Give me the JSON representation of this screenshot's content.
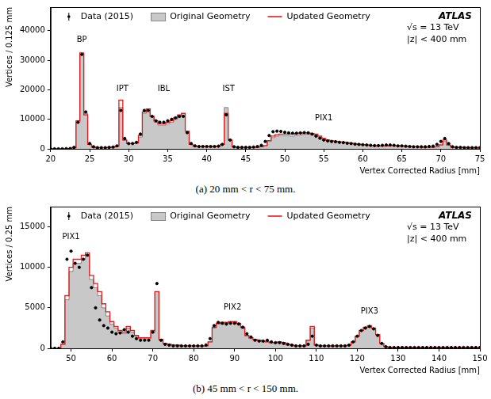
{
  "chart_data": [
    {
      "type": "line",
      "caption": "(a) 20 mm < r < 75 mm.",
      "x_label": "Vertex Corrected Radius [mm]",
      "y_label": "Vertices / 0.125 mm",
      "xlim": [
        20,
        75
      ],
      "xticks": [
        20,
        25,
        30,
        35,
        40,
        45,
        50,
        55,
        60,
        65,
        70,
        75
      ],
      "ylim": [
        0,
        48000
      ],
      "yticks": [
        0,
        10000,
        20000,
        30000,
        40000
      ],
      "grid": false,
      "legend": "upper left",
      "experiment_label": [
        "ATLAS",
        "√s = 13 TeV",
        "|z| < 400 mm"
      ],
      "annotations": [
        {
          "text": "BP",
          "x": 24,
          "y": 35500
        },
        {
          "text": "IPT",
          "x": 29.2,
          "y": 19000
        },
        {
          "text": "IBL",
          "x": 34.5,
          "y": 19000
        },
        {
          "text": "IST",
          "x": 42.8,
          "y": 19000
        },
        {
          "text": "PIX1",
          "x": 55,
          "y": 9000
        }
      ],
      "x": [
        20,
        20.5,
        21,
        21.5,
        22,
        22.5,
        23,
        23.5,
        24,
        24.5,
        25,
        25.5,
        26,
        26.5,
        27,
        27.5,
        28,
        28.5,
        29,
        29.5,
        30,
        30.5,
        31,
        31.5,
        32,
        32.5,
        33,
        33.5,
        34,
        34.5,
        35,
        35.5,
        36,
        36.5,
        37,
        37.5,
        38,
        38.5,
        39,
        39.5,
        40,
        40.5,
        41,
        41.5,
        42,
        42.5,
        43,
        43.5,
        44,
        44.5,
        45,
        45.5,
        46,
        46.5,
        47,
        47.5,
        48,
        48.5,
        49,
        49.5,
        50,
        50.5,
        51,
        51.5,
        52,
        52.5,
        53,
        53.5,
        54,
        54.5,
        55,
        55.5,
        56,
        56.5,
        57,
        57.5,
        58,
        58.5,
        59,
        59.5,
        60,
        60.5,
        61,
        61.5,
        62,
        62.5,
        63,
        63.5,
        64,
        64.5,
        65,
        65.5,
        66,
        66.5,
        67,
        67.5,
        68,
        68.5,
        69,
        69.5,
        70,
        70.5,
        71,
        71.5,
        72,
        72.5,
        73,
        73.5,
        74,
        74.5,
        75
      ],
      "series": [
        {
          "name": "Data (2015)",
          "type": "scatter",
          "marker": "point",
          "color": "#000000",
          "values": [
            0,
            0,
            0,
            0,
            50,
            100,
            500,
            9000,
            32000,
            12500,
            1800,
            700,
            400,
            400,
            400,
            500,
            600,
            1000,
            13000,
            3500,
            1800,
            1800,
            2200,
            5000,
            13000,
            13000,
            11000,
            9500,
            9000,
            9000,
            9500,
            10000,
            10500,
            11000,
            11000,
            5500,
            1800,
            1000,
            800,
            800,
            800,
            800,
            800,
            900,
            1500,
            11500,
            3000,
            700,
            500,
            500,
            500,
            500,
            600,
            800,
            1200,
            2500,
            4500,
            5800,
            6000,
            5900,
            5600,
            5400,
            5300,
            5300,
            5400,
            5500,
            5400,
            5000,
            4300,
            3600,
            3000,
            2700,
            2500,
            2400,
            2200,
            2100,
            1900,
            1800,
            1600,
            1500,
            1400,
            1300,
            1200,
            1100,
            1100,
            1200,
            1300,
            1300,
            1200,
            1000,
            1000,
            900,
            800,
            700,
            700,
            700,
            700,
            800,
            900,
            1500,
            2500,
            3500,
            1800,
            700,
            500,
            500,
            400,
            400,
            400,
            400,
            400
          ]
        },
        {
          "name": "Original Geometry",
          "type": "area",
          "line_style": "steps",
          "color": "#c8c8c8",
          "values": [
            0,
            0,
            0,
            0,
            50,
            100,
            400,
            9000,
            32000,
            12000,
            1500,
            600,
            400,
            400,
            400,
            500,
            600,
            900,
            14000,
            3000,
            1800,
            1800,
            2000,
            4000,
            12000,
            13500,
            11000,
            9000,
            8000,
            8000,
            8500,
            9000,
            10000,
            11000,
            11500,
            6000,
            1500,
            900,
            800,
            800,
            800,
            800,
            800,
            900,
            1500,
            14000,
            3000,
            700,
            500,
            500,
            500,
            500,
            500,
            600,
            700,
            1000,
            2500,
            3800,
            4300,
            4500,
            4400,
            4400,
            4300,
            4600,
            4700,
            4900,
            5000,
            4800,
            4600,
            4000,
            3200,
            2800,
            2600,
            2500,
            2300,
            2200,
            2000,
            1800,
            1700,
            1500,
            1400,
            1300,
            1200,
            1100,
            1000,
            1000,
            1000,
            1100,
            1100,
            1000,
            1000,
            900,
            800,
            700,
            700,
            600,
            600,
            600,
            600,
            700,
            1200,
            2500,
            1200,
            600,
            500,
            500,
            500,
            400,
            400,
            400,
            400
          ]
        },
        {
          "name": "Updated Geometry",
          "type": "line",
          "line_style": "steps",
          "color": "#e8191b",
          "values": [
            0,
            0,
            0,
            0,
            50,
            100,
            400,
            9500,
            32500,
            11500,
            1500,
            600,
            400,
            400,
            400,
            500,
            600,
            900,
            16500,
            3000,
            1800,
            1800,
            2000,
            4500,
            12500,
            13500,
            11000,
            9500,
            8500,
            8500,
            9000,
            9500,
            10500,
            11500,
            12000,
            6000,
            1500,
            900,
            800,
            800,
            800,
            800,
            800,
            900,
            1500,
            12000,
            3000,
            700,
            500,
            500,
            500,
            500,
            500,
            600,
            700,
            1100,
            2800,
            4300,
            4800,
            5000,
            5000,
            5000,
            5000,
            5200,
            5300,
            5400,
            5400,
            5200,
            5000,
            4300,
            3500,
            3000,
            2700,
            2600,
            2400,
            2300,
            2100,
            1900,
            1700,
            1600,
            1400,
            1300,
            1200,
            1100,
            1000,
            1000,
            1000,
            1100,
            1100,
            1000,
            1000,
            900,
            800,
            700,
            700,
            600,
            600,
            600,
            600,
            700,
            1400,
            3000,
            1300,
            600,
            500,
            500,
            500,
            400,
            400,
            400,
            400
          ]
        }
      ]
    },
    {
      "type": "line",
      "caption": "(b) 45 mm < r < 150 mm.",
      "x_label": "Vertex Corrected Radius [mm]",
      "y_label": "Vertices / 0.25 mm",
      "xlim": [
        45,
        150
      ],
      "xticks": [
        50,
        60,
        70,
        80,
        90,
        100,
        110,
        120,
        130,
        140,
        150
      ],
      "ylim": [
        0,
        17500
      ],
      "yticks": [
        0,
        5000,
        10000,
        15000
      ],
      "grid": false,
      "legend": "upper left",
      "experiment_label": [
        "ATLAS",
        "√s = 13 TeV",
        "|z| < 400 mm"
      ],
      "annotations": [
        {
          "text": "PIX1",
          "x": 50,
          "y": 13300
        },
        {
          "text": "PIX2",
          "x": 89.5,
          "y": 4600
        },
        {
          "text": "PIX3",
          "x": 123,
          "y": 4100
        }
      ],
      "x": [
        45,
        46,
        47,
        48,
        49,
        50,
        51,
        52,
        53,
        54,
        55,
        56,
        57,
        58,
        59,
        60,
        61,
        62,
        63,
        64,
        65,
        66,
        67,
        68,
        69,
        70,
        71,
        72,
        73,
        74,
        75,
        76,
        77,
        78,
        79,
        80,
        81,
        82,
        83,
        84,
        85,
        86,
        87,
        88,
        89,
        90,
        91,
        92,
        93,
        94,
        95,
        96,
        97,
        98,
        99,
        100,
        101,
        102,
        103,
        104,
        105,
        106,
        107,
        108,
        109,
        110,
        111,
        112,
        113,
        114,
        115,
        116,
        117,
        118,
        119,
        120,
        121,
        122,
        123,
        124,
        125,
        126,
        127,
        128,
        129,
        130,
        131,
        132,
        133,
        134,
        135,
        136,
        137,
        138,
        139,
        140,
        141,
        142,
        143,
        144,
        145,
        146,
        147,
        148,
        149,
        150
      ],
      "series": [
        {
          "name": "Data (2015)",
          "type": "scatter",
          "marker": "point",
          "color": "#000000",
          "values": [
            0,
            0,
            0,
            800,
            11000,
            12000,
            10500,
            10000,
            11000,
            11500,
            7500,
            5000,
            3500,
            2800,
            2500,
            2000,
            1800,
            1900,
            2300,
            2000,
            1500,
            1200,
            1000,
            1000,
            1000,
            2000,
            8000,
            1000,
            500,
            400,
            300,
            300,
            300,
            300,
            300,
            300,
            300,
            300,
            400,
            1200,
            2800,
            3200,
            3100,
            3000,
            3100,
            3100,
            3000,
            2600,
            1800,
            1400,
            1000,
            900,
            900,
            1000,
            800,
            700,
            700,
            600,
            500,
            400,
            300,
            300,
            300,
            500,
            1500,
            400,
            300,
            300,
            300,
            300,
            300,
            300,
            300,
            400,
            800,
            1500,
            2200,
            2500,
            2700,
            2400,
            1600,
            600,
            200,
            100,
            100,
            100,
            100,
            100,
            100,
            100,
            100,
            100,
            100,
            100,
            100,
            100,
            100,
            100,
            100,
            100,
            100,
            100,
            100,
            100,
            100,
            100
          ]
        },
        {
          "name": "Original Geometry",
          "type": "area",
          "line_style": "steps",
          "color": "#c8c8c8",
          "values": [
            0,
            0,
            0,
            500,
            6000,
            9500,
            10500,
            10500,
            11000,
            11500,
            8500,
            7500,
            6500,
            5000,
            4000,
            3000,
            2500,
            2000,
            1800,
            2500,
            2000,
            1500,
            1200,
            1200,
            1200,
            2000,
            7000,
            1000,
            600,
            500,
            400,
            400,
            300,
            300,
            300,
            300,
            300,
            300,
            300,
            800,
            2500,
            3000,
            3000,
            3100,
            3200,
            3200,
            3000,
            2500,
            1500,
            1200,
            1000,
            900,
            800,
            800,
            700,
            700,
            800,
            700,
            500,
            400,
            300,
            300,
            300,
            1000,
            2500,
            400,
            300,
            300,
            300,
            300,
            300,
            300,
            300,
            400,
            800,
            1500,
            2200,
            2600,
            2700,
            2400,
            1600,
            600,
            200,
            100,
            100,
            100,
            100,
            100,
            100,
            100,
            100,
            100,
            100,
            100,
            100,
            100,
            100,
            100,
            100,
            100,
            100,
            100,
            100,
            100,
            100,
            100
          ]
        },
        {
          "name": "Updated Geometry",
          "type": "line",
          "line_style": "steps",
          "color": "#e8191b",
          "values": [
            0,
            0,
            0,
            500,
            6500,
            10000,
            11000,
            11000,
            11500,
            11800,
            9000,
            8000,
            7000,
            5500,
            4500,
            3300,
            2700,
            2200,
            2000,
            2700,
            2200,
            1600,
            1300,
            1300,
            1300,
            2200,
            7000,
            1100,
            600,
            500,
            400,
            400,
            300,
            300,
            300,
            300,
            300,
            300,
            300,
            800,
            2600,
            3100,
            3200,
            3200,
            3300,
            3300,
            3100,
            2600,
            1600,
            1300,
            1100,
            1000,
            900,
            800,
            700,
            700,
            800,
            700,
            500,
            400,
            300,
            300,
            300,
            1000,
            2700,
            400,
            300,
            300,
            300,
            300,
            300,
            300,
            300,
            400,
            800,
            1500,
            2200,
            2600,
            2800,
            2500,
            1700,
            600,
            200,
            100,
            100,
            100,
            100,
            100,
            100,
            100,
            100,
            100,
            100,
            100,
            100,
            100,
            100,
            100,
            100,
            100,
            100,
            100,
            100,
            100,
            100,
            100
          ]
        }
      ]
    }
  ]
}
